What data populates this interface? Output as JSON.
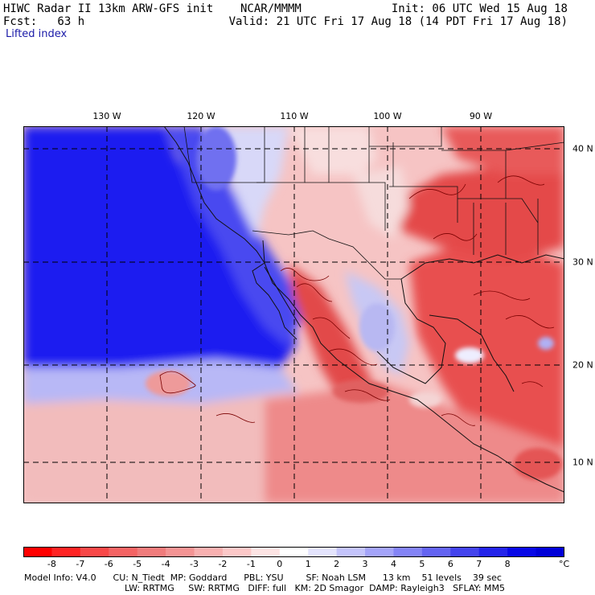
{
  "header": {
    "model_line": "HIWC Radar II 13km ARW-GFS init    NCAR/MMMM",
    "init": "Init: 06 UTC Wed 15 Aug 18",
    "fcst": "Fcst:   63 h",
    "valid": "Valid: 21 UTC Fri 17 Aug 18 (14 PDT Fri 17 Aug 18)",
    "field": "Lifted index"
  },
  "map": {
    "lon_labels": [
      "130 W",
      "120 W",
      "110 W",
      "100 W",
      "90 W"
    ],
    "lat_labels": [
      "40 N",
      "30 N",
      "20 N",
      "10 N"
    ],
    "colors": {
      "stable_blue": "#1e22e6",
      "unstable_red": "#e52424",
      "neutral": "#ffffff"
    }
  },
  "colorbar": {
    "ticks": [
      "-8",
      "-7",
      "-6",
      "-5",
      "-4",
      "-3",
      "-2",
      "-1",
      "0",
      "1",
      "2",
      "3",
      "4",
      "5",
      "6",
      "7",
      "8"
    ],
    "unit": "°C",
    "colors": [
      "#ff0000",
      "#ff2424",
      "#f84848",
      "#f46464",
      "#f07c7c",
      "#f49494",
      "#f8b0b0",
      "#fcc8c8",
      "#fde4e4",
      "#ffffff",
      "#e4e4fd",
      "#c4c4fb",
      "#a4a4f9",
      "#8484f6",
      "#6464f2",
      "#4444ee",
      "#2424ea",
      "#0808e6",
      "#0000d8"
    ]
  },
  "footer": {
    "line1": "Model Info: V4.0      CU: N_Tiedt  MP: Goddard      PBL: YSU        SF: Noah LSM      13 km    51 levels    39 sec",
    "line2": "LW: RRTMG     SW: RRTMG   DIFF: full   KM: 2D Smagor  DAMP: Rayleigh3   SFLAY: MM5"
  }
}
